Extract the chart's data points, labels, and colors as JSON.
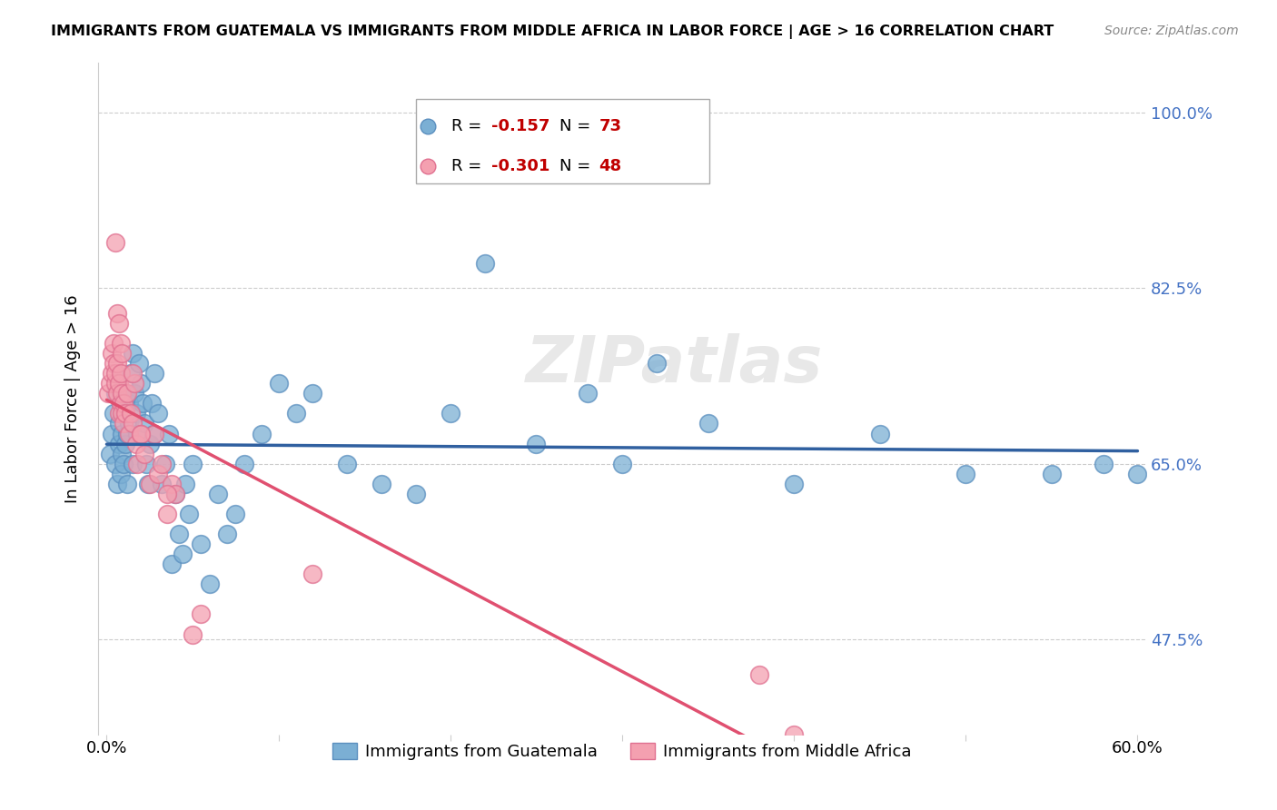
{
  "title": "IMMIGRANTS FROM GUATEMALA VS IMMIGRANTS FROM MIDDLE AFRICA IN LABOR FORCE | AGE > 16 CORRELATION CHART",
  "source": "Source: ZipAtlas.com",
  "ylabel": "In Labor Force | Age > 16",
  "yticks": [
    0.475,
    0.65,
    0.825,
    1.0
  ],
  "ytick_labels": [
    "47.5%",
    "65.0%",
    "82.5%",
    "100.0%"
  ],
  "xlim": [
    0.0,
    0.6
  ],
  "ylim": [
    0.38,
    1.05
  ],
  "guatemala_color": "#7bafd4",
  "guatemala_edge": "#5b8fbf",
  "middle_africa_color": "#f4a0b0",
  "middle_africa_edge": "#e07090",
  "trendline_guatemala_color": "#3060a0",
  "trendline_middle_africa_color": "#e05070",
  "R_guatemala": -0.157,
  "N_guatemala": 73,
  "R_middle_africa": -0.301,
  "N_middle_africa": 48,
  "watermark": "ZIPatlas",
  "legend_label_1": "Immigrants from Guatemala",
  "legend_label_2": "Immigrants from Middle Africa",
  "guatemala_x": [
    0.002,
    0.003,
    0.004,
    0.005,
    0.005,
    0.006,
    0.007,
    0.007,
    0.008,
    0.008,
    0.009,
    0.009,
    0.01,
    0.01,
    0.011,
    0.011,
    0.012,
    0.012,
    0.013,
    0.013,
    0.014,
    0.015,
    0.015,
    0.016,
    0.017,
    0.018,
    0.019,
    0.02,
    0.021,
    0.022,
    0.023,
    0.024,
    0.025,
    0.026,
    0.027,
    0.028,
    0.03,
    0.032,
    0.034,
    0.036,
    0.038,
    0.04,
    0.042,
    0.044,
    0.046,
    0.048,
    0.05,
    0.055,
    0.06,
    0.065,
    0.07,
    0.075,
    0.08,
    0.09,
    0.1,
    0.11,
    0.12,
    0.14,
    0.16,
    0.18,
    0.2,
    0.25,
    0.3,
    0.35,
    0.4,
    0.45,
    0.5,
    0.55,
    0.58,
    0.6,
    0.22,
    0.28,
    0.32
  ],
  "guatemala_y": [
    0.66,
    0.68,
    0.7,
    0.65,
    0.72,
    0.63,
    0.67,
    0.69,
    0.71,
    0.64,
    0.66,
    0.68,
    0.65,
    0.7,
    0.67,
    0.72,
    0.63,
    0.68,
    0.69,
    0.71,
    0.74,
    0.76,
    0.65,
    0.72,
    0.7,
    0.68,
    0.75,
    0.73,
    0.71,
    0.69,
    0.65,
    0.63,
    0.67,
    0.71,
    0.68,
    0.74,
    0.7,
    0.63,
    0.65,
    0.68,
    0.55,
    0.62,
    0.58,
    0.56,
    0.63,
    0.6,
    0.65,
    0.57,
    0.53,
    0.62,
    0.58,
    0.6,
    0.65,
    0.68,
    0.73,
    0.7,
    0.72,
    0.65,
    0.63,
    0.62,
    0.7,
    0.67,
    0.65,
    0.69,
    0.63,
    0.68,
    0.64,
    0.64,
    0.65,
    0.64,
    0.85,
    0.72,
    0.75
  ],
  "middle_africa_x": [
    0.001,
    0.002,
    0.003,
    0.003,
    0.004,
    0.004,
    0.005,
    0.005,
    0.006,
    0.006,
    0.007,
    0.007,
    0.008,
    0.008,
    0.009,
    0.009,
    0.01,
    0.01,
    0.011,
    0.012,
    0.013,
    0.014,
    0.015,
    0.016,
    0.017,
    0.018,
    0.02,
    0.022,
    0.025,
    0.028,
    0.03,
    0.032,
    0.035,
    0.038,
    0.04,
    0.05,
    0.12,
    0.4,
    0.005,
    0.006,
    0.007,
    0.008,
    0.009,
    0.015,
    0.02,
    0.035,
    0.055,
    0.38
  ],
  "middle_africa_y": [
    0.72,
    0.73,
    0.74,
    0.76,
    0.75,
    0.77,
    0.73,
    0.74,
    0.72,
    0.75,
    0.7,
    0.73,
    0.71,
    0.74,
    0.72,
    0.7,
    0.69,
    0.71,
    0.7,
    0.72,
    0.68,
    0.7,
    0.69,
    0.73,
    0.67,
    0.65,
    0.68,
    0.66,
    0.63,
    0.68,
    0.64,
    0.65,
    0.6,
    0.63,
    0.62,
    0.48,
    0.54,
    0.38,
    0.87,
    0.8,
    0.79,
    0.77,
    0.76,
    0.74,
    0.68,
    0.62,
    0.5,
    0.44
  ]
}
